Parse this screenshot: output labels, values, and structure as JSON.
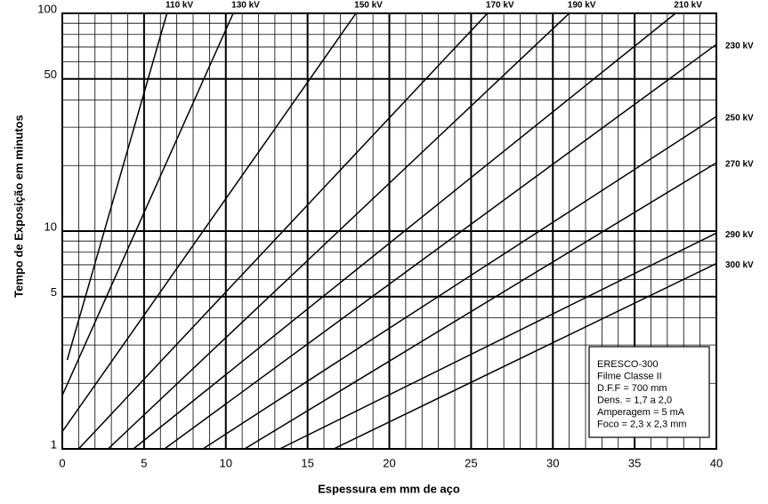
{
  "chart_data": {
    "type": "line",
    "y_log": true,
    "x_label": "Espessura em mm de aço",
    "y_label": "Tempo de Exposição em minutos",
    "xlim": [
      0,
      40
    ],
    "ylim": [
      1,
      100
    ],
    "xticks": [
      0,
      5,
      10,
      15,
      20,
      25,
      30,
      35,
      40
    ],
    "yticks": [
      1,
      5,
      10,
      50,
      100
    ],
    "grid": true,
    "color": "#000000",
    "series": [
      {
        "name": "110 kV",
        "x": [
          0.3,
          6.4
        ],
        "values": [
          2.56,
          100
        ]
      },
      {
        "name": "130 kV",
        "x": [
          0,
          10.45
        ],
        "values": [
          1.76,
          100
        ]
      },
      {
        "name": "150 kV",
        "x": [
          0,
          17.96
        ],
        "values": [
          1.2,
          100
        ]
      },
      {
        "name": "170 kV",
        "x": [
          1,
          26
        ],
        "values": [
          1,
          100
        ]
      },
      {
        "name": "190 kV",
        "x": [
          2.8,
          31
        ],
        "values": [
          1,
          100
        ]
      },
      {
        "name": "210 kV",
        "x": [
          4.35,
          37.5
        ],
        "values": [
          1,
          100
        ]
      },
      {
        "name": "230 kV",
        "x": [
          6.25,
          40
        ],
        "values": [
          1,
          72
        ]
      },
      {
        "name": "250 kV",
        "x": [
          8.6,
          40
        ],
        "values": [
          1,
          33.6
        ]
      },
      {
        "name": "270 kV",
        "x": [
          11.15,
          40
        ],
        "values": [
          1,
          20.6
        ]
      },
      {
        "name": "290 kV",
        "x": [
          13.3,
          40
        ],
        "values": [
          1,
          9.8
        ]
      },
      {
        "name": "300 kV",
        "x": [
          16.6,
          40
        ],
        "values": [
          1,
          7.1
        ]
      }
    ],
    "note": [
      "ERESCO-300",
      "Filme Classe II",
      "D.F.F = 700 mm",
      "Dens. = 1,7 a 2,0",
      "Amperagem = 5 mA",
      "Foco = 2,3 x 2,3 mm"
    ]
  }
}
